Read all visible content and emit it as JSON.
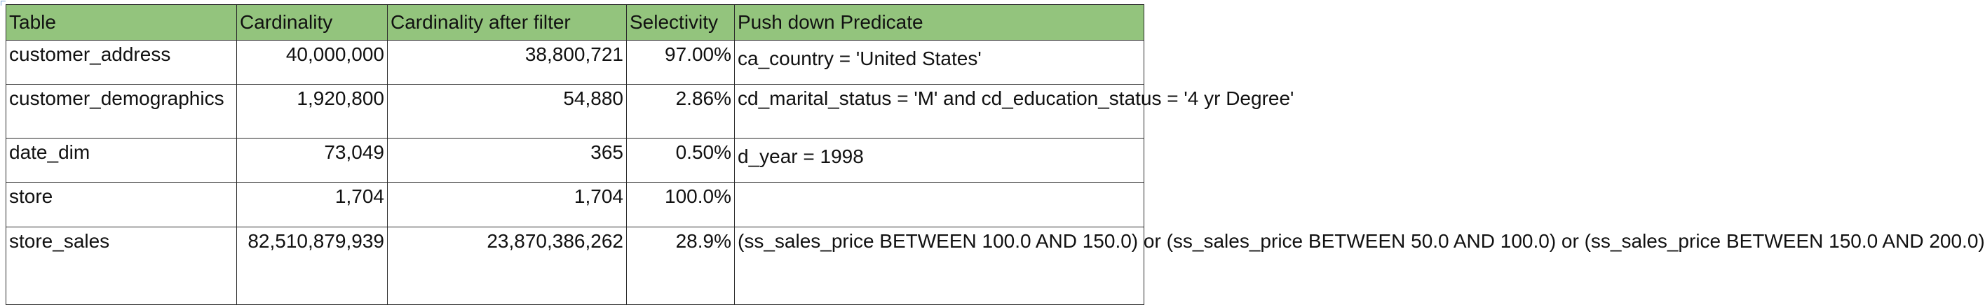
{
  "table": {
    "headers": [
      "Table",
      "Cardinality",
      "Cardinality after filter",
      "Selectivity",
      "Push down Predicate"
    ],
    "rows": [
      {
        "table": "customer_address",
        "cardinality": "40,000,000",
        "after_filter": "38,800,721",
        "selectivity": "97.00%",
        "predicate": "ca_country = 'United States'"
      },
      {
        "table": "customer_demographics",
        "cardinality": "1,920,800",
        "after_filter": "54,880",
        "selectivity": "2.86%",
        "predicate": "cd_marital_status = 'M' and cd_education_status = '4 yr Degree'"
      },
      {
        "table": "date_dim",
        "cardinality": "73,049",
        "after_filter": "365",
        "selectivity": "0.50%",
        "predicate": "d_year = 1998"
      },
      {
        "table": "store",
        "cardinality": "1,704",
        "after_filter": "1,704",
        "selectivity": "100.0%",
        "predicate": ""
      },
      {
        "table": "store_sales",
        "cardinality": "82,510,879,939",
        "after_filter": "23,870,386,262",
        "selectivity": "28.9%",
        "predicate": "(ss_sales_price BETWEEN 100.0 AND 150.0) or (ss_sales_price BETWEEN 50.0 AND 100.0) or (ss_sales_price BETWEEN 150.0 AND 200.0)"
      }
    ]
  },
  "colors": {
    "header_bg": "#93c47d",
    "border": "#2b2b2b"
  }
}
